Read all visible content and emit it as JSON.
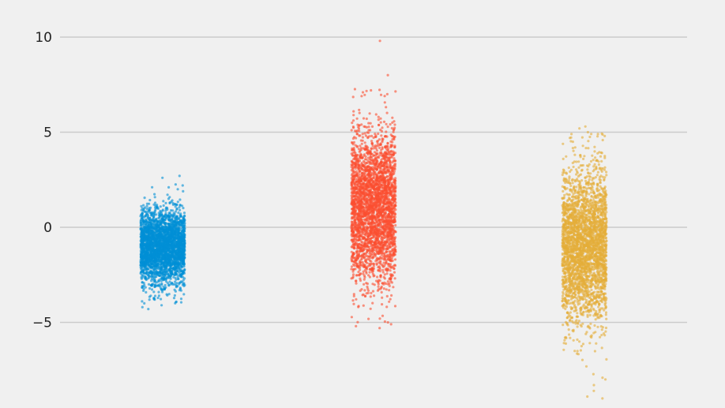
{
  "chart_data": {
    "type": "strip",
    "title": "",
    "xlabel": "",
    "ylabel": "",
    "ylim": [
      -9.3,
      11.0
    ],
    "grid": true,
    "legend": "none",
    "yticks": [
      {
        "value": 10,
        "label": "10"
      },
      {
        "value": 5,
        "label": "5"
      },
      {
        "value": 0,
        "label": "0"
      },
      {
        "value": -5,
        "label": "−5"
      }
    ],
    "background_color": "#f0f0f0",
    "series": [
      {
        "color": "#008fd5",
        "point_count": 3000,
        "mean": -1.0,
        "std": 1.0,
        "min": -4.3,
        "max": 2.7,
        "extreme_points": [
          2.7,
          2.6,
          2.2,
          2.1,
          2.0,
          -3.8,
          -4.0,
          -4.1,
          -4.2,
          -4.3
        ]
      },
      {
        "color": "#fc4f30",
        "point_count": 3000,
        "mean": 1.0,
        "std": 2.0,
        "min": -5.3,
        "max": 9.8,
        "extreme_points": [
          9.8,
          8.0,
          7.2,
          7.0,
          6.9,
          -4.8,
          -5.0,
          -5.1,
          -5.2,
          -5.3
        ]
      },
      {
        "color": "#e5ae38",
        "point_count": 3000,
        "mean": -1.0,
        "std": 2.0,
        "min": -9.0,
        "max": 5.3,
        "extreme_points": [
          5.3,
          5.2,
          5.0,
          4.9,
          4.5,
          -8.0,
          -8.3,
          -8.6,
          -8.9,
          -9.0
        ]
      }
    ]
  }
}
